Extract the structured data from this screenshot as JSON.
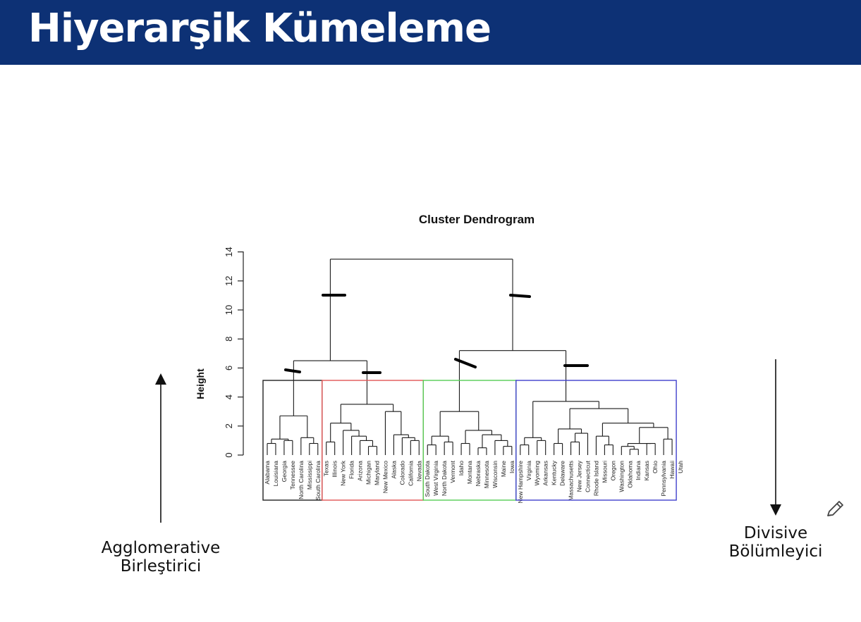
{
  "slide": {
    "title": "Hiyerarşik Kümeleme"
  },
  "chart": {
    "title": "Cluster Dendrogram",
    "ylabel": "Height",
    "yticks": [
      "0",
      "2",
      "4",
      "6",
      "8",
      "10",
      "12",
      "14"
    ],
    "leaves": [
      "Alabama",
      "Louisiana",
      "Georgia",
      "Tennessee",
      "North Carolina",
      "Mississippi",
      "South Carolina",
      "Texas",
      "Illinois",
      "New York",
      "Florida",
      "Arizona",
      "Michigan",
      "Maryland",
      "New Mexico",
      "Alaska",
      "Colorado",
      "California",
      "Nevada",
      "South Dakota",
      "West Virginia",
      "North Dakota",
      "Vermont",
      "Idaho",
      "Montana",
      "Nebraska",
      "Minnesota",
      "Wisconsin",
      "Maine",
      "Iowa",
      "New Hampshire",
      "Virginia",
      "Wyoming",
      "Arkansas",
      "Kentucky",
      "Delaware",
      "Massachusetts",
      "New Jersey",
      "Connecticut",
      "Rhode Island",
      "Missouri",
      "Oregon",
      "Washington",
      "Oklahoma",
      "Indiana",
      "Kansas",
      "Ohio",
      "Pennsylvania",
      "Hawaii",
      "Utah"
    ],
    "cluster_colors": [
      "#222222",
      "#e05555",
      "#55cc55",
      "#4040cc"
    ]
  },
  "labels": {
    "left_line1": "Agglomerative",
    "left_line2": "Birleştirici",
    "right_line1": "Divisive",
    "right_line2": "Bölümleyici"
  }
}
